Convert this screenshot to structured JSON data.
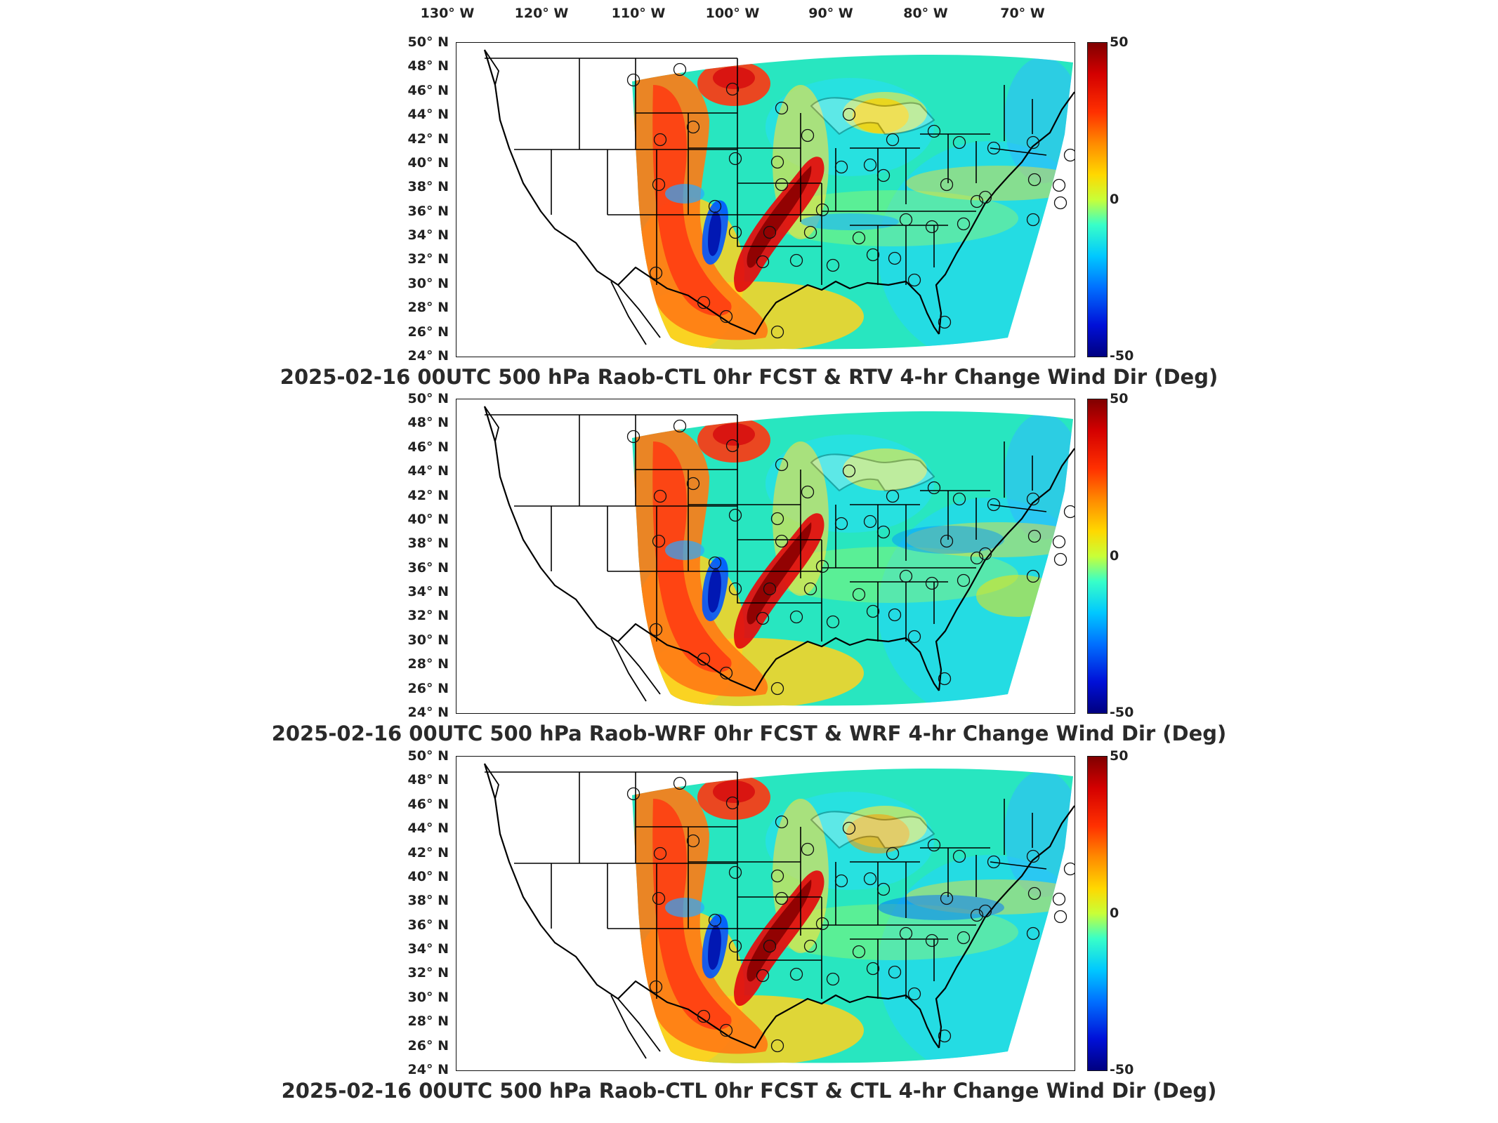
{
  "lon_labels": [
    "130° W",
    "120° W",
    "110° W",
    "100° W",
    "90° W",
    "80° W",
    "70° W"
  ],
  "lat_labels": [
    "50° N",
    "48° N",
    "46° N",
    "44° N",
    "42° N",
    "40° N",
    "38° N",
    "36° N",
    "34° N",
    "32° N",
    "30° N",
    "28° N",
    "26° N",
    "24° N"
  ],
  "colorbar": {
    "max": "50",
    "mid": "0",
    "min": "-50",
    "colors": [
      "#800000",
      "#ff3000",
      "#ffd800",
      "#38ffc8",
      "#0070ff",
      "#000080"
    ]
  },
  "panels": [
    {
      "title": "2025-02-16 00UTC 500 hPa Raob-CTL 0hr FCST & RTV 4-hr Change Wind Dir (Deg)"
    },
    {
      "title": "2025-02-16 00UTC 500 hPa Raob-WRF 0hr FCST & WRF 4-hr Change Wind Dir (Deg)"
    },
    {
      "title": "2025-02-16 00UTC 500 hPa Raob-CTL 0hr FCST & CTL 4-hr Change Wind Dir (Deg)"
    }
  ]
}
